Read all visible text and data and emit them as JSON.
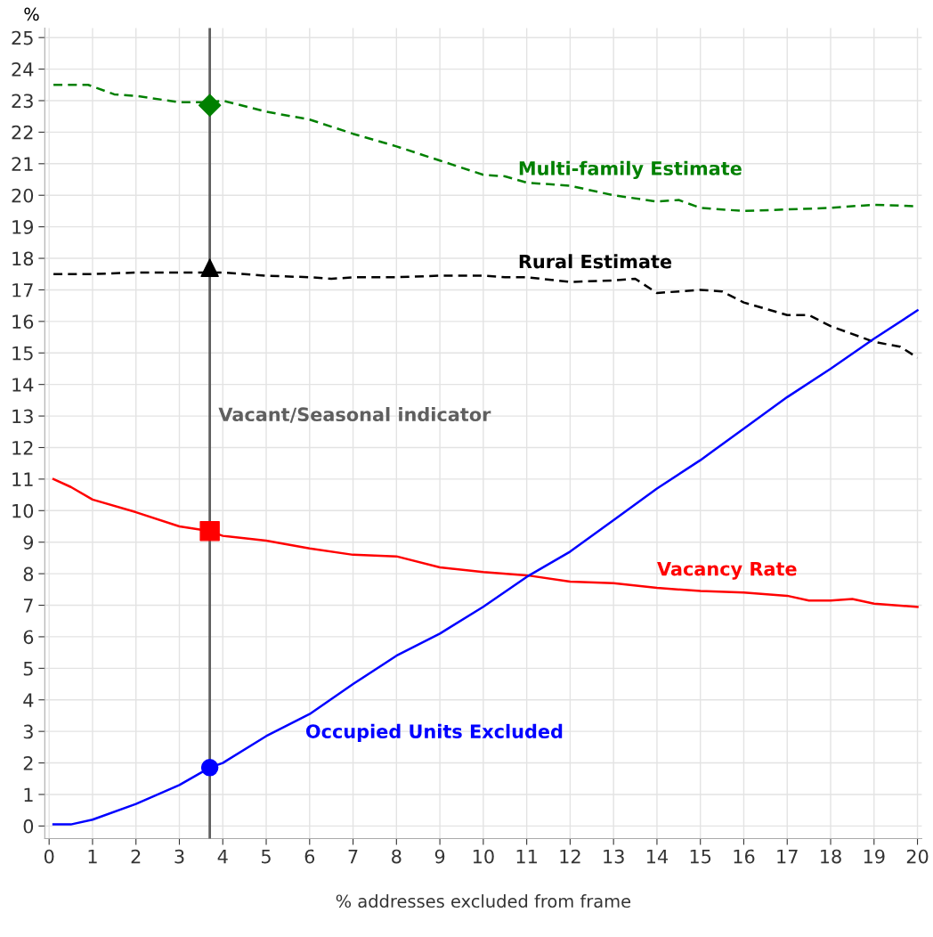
{
  "chart_data": {
    "type": "line",
    "xlabel": "% addresses excluded from frame",
    "ylabel": "%",
    "xlim": [
      -0.1,
      20.1
    ],
    "ylim": [
      -0.4,
      25.3
    ],
    "xticks": [
      0,
      1,
      2,
      3,
      4,
      5,
      6,
      7,
      8,
      9,
      10,
      11,
      12,
      13,
      14,
      15,
      16,
      17,
      18,
      19,
      20
    ],
    "yticks": [
      0,
      1,
      2,
      3,
      4,
      5,
      6,
      7,
      8,
      9,
      10,
      11,
      12,
      13,
      14,
      15,
      16,
      17,
      18,
      19,
      20,
      21,
      22,
      23,
      24,
      25
    ],
    "grid": true,
    "legend": false,
    "ref_lines": [
      {
        "axis": "x",
        "value": 3.7,
        "label": "Vacant/Seasonal indicator",
        "color": "#5f5f5f"
      }
    ],
    "series": [
      {
        "name": "Multi-family Estimate",
        "color": "#008000",
        "line_style": "dashed",
        "x": [
          0.1,
          0.9,
          1.5,
          2,
          3,
          3.7,
          4,
          5,
          6,
          7,
          8,
          9,
          10,
          10.5,
          11,
          12,
          13,
          14,
          14.5,
          15,
          16,
          17,
          18,
          19,
          20
        ],
        "values": [
          23.5,
          23.5,
          23.2,
          23.15,
          22.95,
          22.95,
          23.0,
          22.65,
          22.4,
          21.95,
          21.55,
          21.1,
          20.65,
          20.6,
          20.4,
          20.3,
          20.0,
          19.8,
          19.85,
          19.6,
          19.5,
          19.55,
          19.6,
          19.7,
          19.65
        ]
      },
      {
        "name": "Rural Estimate",
        "color": "#000000",
        "line_style": "dashed",
        "x": [
          0.1,
          1,
          2,
          3,
          4,
          5,
          6,
          6.5,
          7,
          8,
          9,
          10,
          10.5,
          11,
          12,
          13,
          13.5,
          14,
          15,
          15.5,
          16,
          17,
          17.5,
          18,
          19,
          19.6,
          20
        ],
        "values": [
          17.5,
          17.5,
          17.55,
          17.55,
          17.55,
          17.45,
          17.4,
          17.35,
          17.4,
          17.4,
          17.45,
          17.45,
          17.4,
          17.4,
          17.25,
          17.3,
          17.35,
          16.9,
          17.0,
          16.95,
          16.6,
          16.2,
          16.2,
          15.85,
          15.35,
          15.2,
          14.85
        ]
      },
      {
        "name": "Vacancy Rate",
        "color": "#ff0000",
        "line_style": "solid",
        "x": [
          0.1,
          0.5,
          1,
          2,
          3,
          3.7,
          4,
          5,
          6,
          7,
          8,
          9,
          10,
          11,
          12,
          13,
          14,
          15,
          16,
          17,
          17.5,
          18,
          18.5,
          19,
          20
        ],
        "values": [
          11.0,
          10.75,
          10.35,
          9.95,
          9.5,
          9.35,
          9.2,
          9.05,
          8.8,
          8.6,
          8.55,
          8.2,
          8.05,
          7.95,
          7.75,
          7.7,
          7.55,
          7.45,
          7.4,
          7.3,
          7.15,
          7.15,
          7.2,
          7.05,
          6.95
        ]
      },
      {
        "name": "Occupied Units Excluded",
        "color": "#0000ff",
        "line_style": "solid",
        "x": [
          0.1,
          0.5,
          1,
          2,
          3,
          3.7,
          4,
          5,
          6,
          7,
          8,
          9,
          10,
          11,
          12,
          13,
          14,
          15,
          16,
          17,
          18,
          19,
          20
        ],
        "values": [
          0.05,
          0.05,
          0.2,
          0.7,
          1.3,
          1.85,
          2.0,
          2.85,
          3.55,
          4.5,
          5.4,
          6.1,
          6.95,
          7.9,
          8.7,
          9.7,
          10.7,
          11.6,
          12.6,
          13.6,
          14.5,
          15.45,
          16.35
        ]
      },
      {
        "type": "scatter",
        "marker": "diamond",
        "color": "#008000",
        "x": [
          3.7
        ],
        "values": [
          22.85
        ]
      },
      {
        "type": "scatter",
        "marker": "triangle",
        "color": "#000000",
        "x": [
          3.7
        ],
        "values": [
          17.7
        ]
      },
      {
        "type": "scatter",
        "marker": "square",
        "color": "#ff0000",
        "x": [
          3.7
        ],
        "values": [
          9.35
        ]
      },
      {
        "type": "scatter",
        "marker": "circle",
        "color": "#0000ff",
        "x": [
          3.7
        ],
        "values": [
          1.85
        ]
      }
    ]
  }
}
